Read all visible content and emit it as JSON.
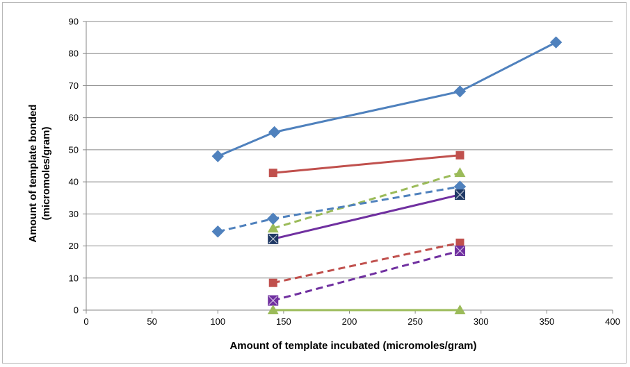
{
  "chart_data": {
    "type": "line",
    "title": "",
    "xlabel": "Amount of template incubated (micromoles/gram)",
    "ylabel_line1": "Amount of template bonded",
    "ylabel_line2": "(micromoles/gram)",
    "xlim": [
      0,
      400
    ],
    "ylim": [
      0,
      90
    ],
    "xticks": [
      0,
      50,
      100,
      150,
      200,
      250,
      300,
      350,
      400
    ],
    "yticks": [
      0,
      10,
      20,
      30,
      40,
      50,
      60,
      70,
      80,
      90
    ],
    "grid": "horizontal",
    "legend": "none",
    "series": [
      {
        "color": "#4f81bd",
        "dash": false,
        "marker": "diamond",
        "x": [
          100,
          143,
          284,
          357
        ],
        "y": [
          48,
          55.5,
          68.2,
          83.5
        ]
      },
      {
        "color": "#c0504d",
        "dash": false,
        "marker": "square",
        "x": [
          142,
          284
        ],
        "y": [
          42.8,
          48.3
        ]
      },
      {
        "color": "#9bbb59",
        "dash": true,
        "marker": "triangle",
        "x": [
          142,
          284
        ],
        "y": [
          25.5,
          42.8
        ]
      },
      {
        "color": "#4f81bd",
        "dash": true,
        "marker": "diamond",
        "x": [
          100,
          142,
          284
        ],
        "y": [
          24.5,
          28.5,
          38.5
        ]
      },
      {
        "color": "#7030a0",
        "dash": false,
        "marker": "square-x",
        "markerColor": "#1f3864",
        "x": [
          142,
          284
        ],
        "y": [
          22.2,
          36
        ]
      },
      {
        "color": "#c0504d",
        "dash": true,
        "marker": "square",
        "x": [
          142,
          284
        ],
        "y": [
          8.5,
          21
        ]
      },
      {
        "color": "#7030a0",
        "dash": true,
        "marker": "square-x",
        "markerColor": "#7030a0",
        "x": [
          142,
          284
        ],
        "y": [
          3,
          18.5
        ]
      },
      {
        "color": "#9bbb59",
        "dash": false,
        "marker": "triangle",
        "x": [
          142,
          284
        ],
        "y": [
          0,
          0
        ]
      }
    ]
  }
}
